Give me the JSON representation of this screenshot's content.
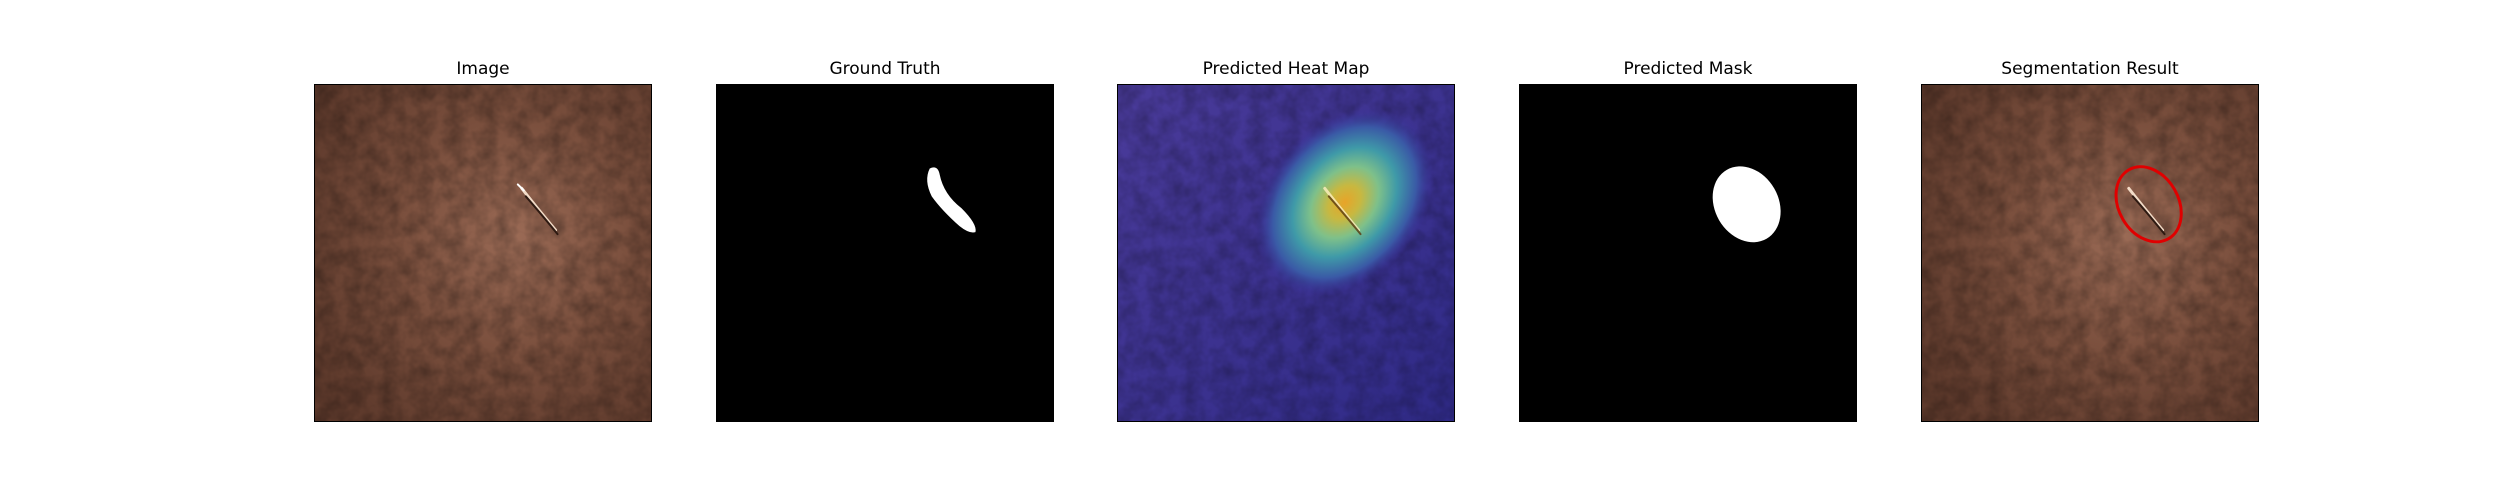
{
  "figure": {
    "panels": [
      {
        "title": "Image",
        "content": "leather-texture-photo"
      },
      {
        "title": "Ground Truth",
        "content": "binary-defect-mask"
      },
      {
        "title": "Predicted Heat Map",
        "content": "jet-colormap-heatmap-overlay"
      },
      {
        "title": "Predicted Mask",
        "content": "binary-predicted-mask"
      },
      {
        "title": "Segmentation Result",
        "content": "photo-with-contour-overlay"
      }
    ]
  },
  "colors": {
    "leather": "#7a4f3d",
    "mask_background": "#000000",
    "mask_foreground": "#ffffff",
    "heatmap_low": "#3a2e9a",
    "heatmap_high": "#e0b030",
    "contour": "#e00000"
  }
}
